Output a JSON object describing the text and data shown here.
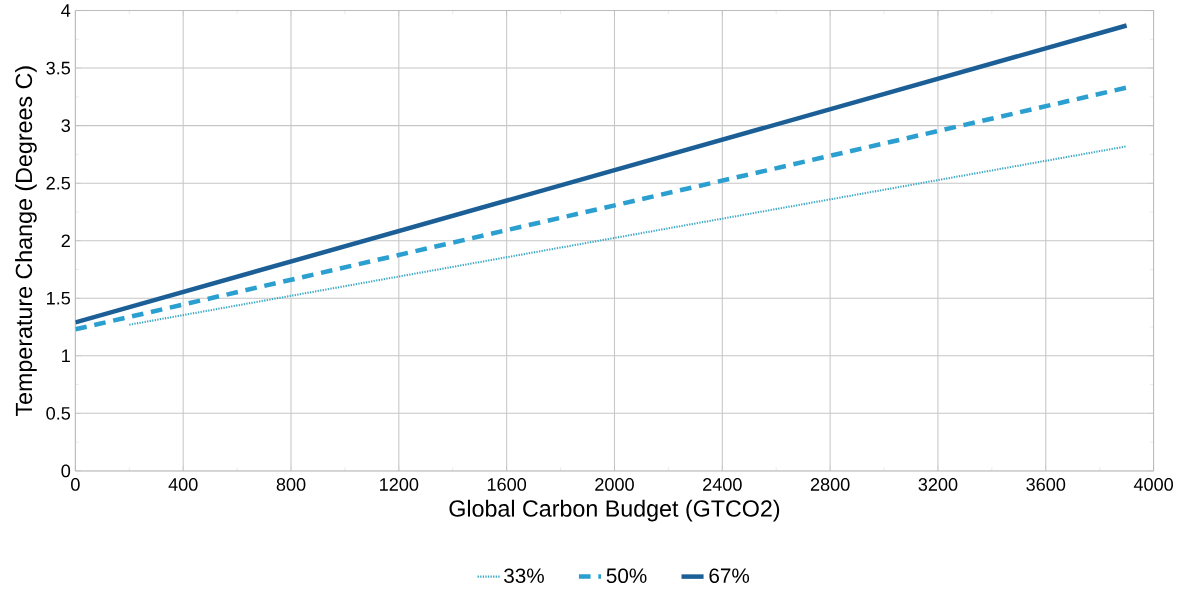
{
  "chart_data": {
    "type": "line",
    "xlabel": "Global Carbon Budget (GTCO2)",
    "ylabel": "Temperature Change (Degrees C)",
    "xlim": [
      0,
      4000
    ],
    "ylim": [
      0,
      4
    ],
    "xticks": [
      0,
      400,
      800,
      1200,
      1600,
      2000,
      2400,
      2800,
      3200,
      3600,
      4000
    ],
    "yticks": [
      0,
      0.5,
      1,
      1.5,
      2,
      2.5,
      3,
      3.5,
      4
    ],
    "grid": true,
    "legend": "bottom",
    "marker": "none",
    "series": [
      {
        "name": "33%",
        "color": "#3aa8c4",
        "line_style": "dotted",
        "x": [
          200,
          3900
        ],
        "values": [
          1.27,
          2.82
        ]
      },
      {
        "name": "50%",
        "color": "#2a9fd0",
        "line_style": "dashed",
        "x": [
          0,
          3900
        ],
        "values": [
          1.23,
          3.33
        ]
      },
      {
        "name": "67%",
        "color": "#1b5f96",
        "line_style": "solid",
        "x": [
          0,
          3900
        ],
        "values": [
          1.29,
          3.87
        ]
      }
    ]
  }
}
